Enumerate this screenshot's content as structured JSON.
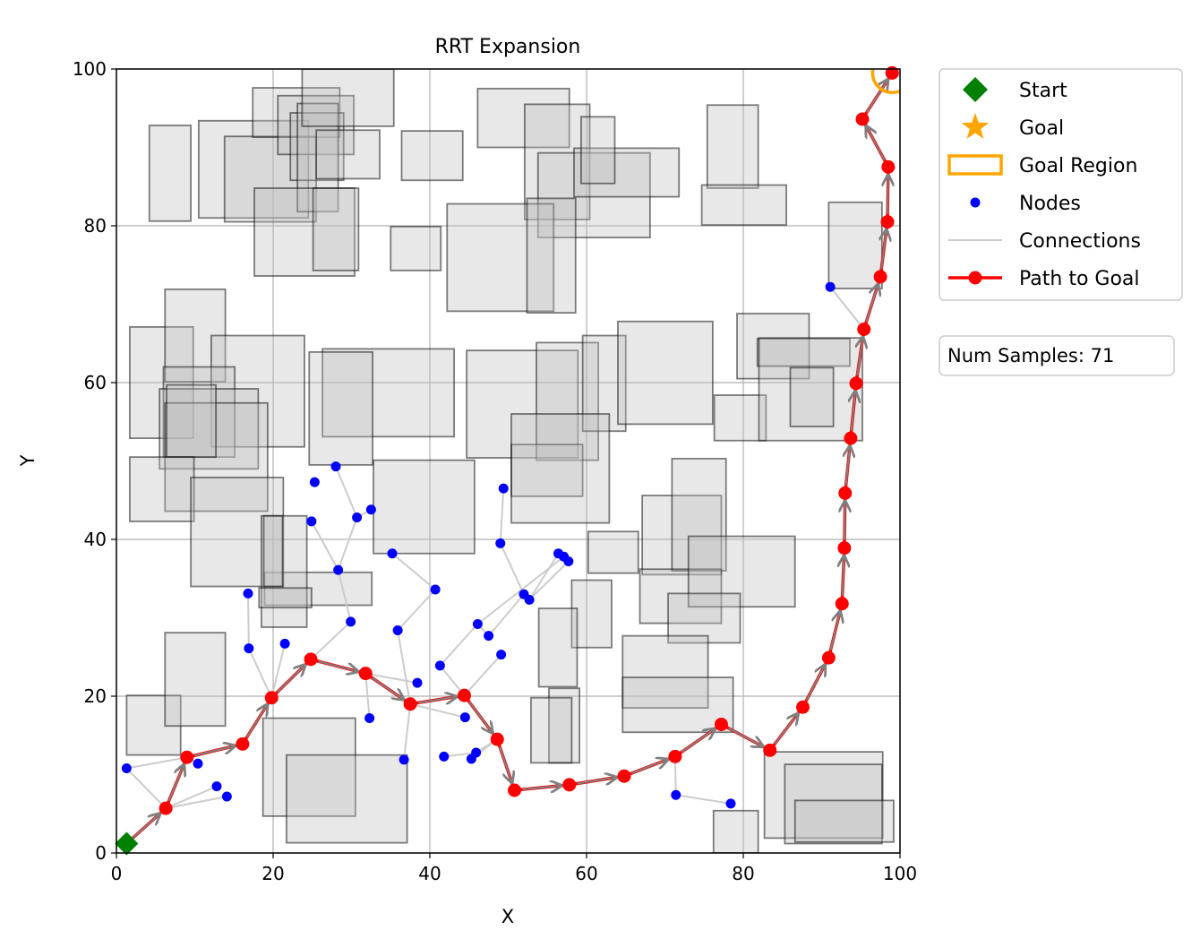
{
  "chart_data": {
    "type": "scatter",
    "title": "RRT Expansion",
    "xlabel": "X",
    "ylabel": "Y",
    "xlim": [
      0,
      100
    ],
    "ylim": [
      0,
      100
    ],
    "xticks": [
      0,
      20,
      40,
      60,
      80,
      100
    ],
    "yticks": [
      0,
      20,
      40,
      60,
      80,
      100
    ],
    "grid": true,
    "legend_placement": "outside-top-right",
    "legend": [
      {
        "label": "Start",
        "marker": "diamond",
        "color": "#008000"
      },
      {
        "label": "Goal",
        "marker": "star",
        "color": "#ffa500"
      },
      {
        "label": "Goal Region",
        "marker": "rect-outline",
        "color": "#ffa500"
      },
      {
        "label": "Nodes",
        "marker": "dot",
        "color": "#0000ff"
      },
      {
        "label": "Connections",
        "marker": "line",
        "color": "#cccccc"
      },
      {
        "label": "Path to Goal",
        "marker": "line-dot",
        "color": "#ff0000"
      }
    ],
    "annotation": "Num Samples: 71",
    "start": [
      1.3,
      1.2
    ],
    "goal": [
      99,
      99.5
    ],
    "goal_region_radius": 2.5,
    "obstacles": [
      [
        4.2,
        80.6,
        9.5,
        92.8
      ],
      [
        10.5,
        81.0,
        24.5,
        93.4
      ],
      [
        13.8,
        80.5,
        25.5,
        91.4
      ],
      [
        17.4,
        91.3,
        28.5,
        97.6
      ],
      [
        20.6,
        89.1,
        30.3,
        96.6
      ],
      [
        22.2,
        85.8,
        29.0,
        94.4
      ],
      [
        23.1,
        81.8,
        28.3,
        95.6
      ],
      [
        23.7,
        92.7,
        35.4,
        100
      ],
      [
        17.6,
        73.6,
        30.4,
        84.8
      ],
      [
        25.1,
        74.3,
        30.9,
        84.8
      ],
      [
        25.5,
        86.0,
        33.6,
        92.2
      ],
      [
        35.0,
        74.3,
        41.4,
        79.9
      ],
      [
        36.4,
        85.8,
        44.2,
        92.1
      ],
      [
        46.1,
        90.0,
        57.8,
        97.5
      ],
      [
        52.1,
        80.8,
        60.4,
        95.5
      ],
      [
        53.8,
        78.5,
        68.1,
        89.3
      ],
      [
        58.4,
        83.7,
        71.8,
        89.9
      ],
      [
        59.3,
        85.4,
        63.6,
        93.9
      ],
      [
        42.2,
        69.1,
        55.8,
        82.8
      ],
      [
        52.4,
        68.9,
        58.6,
        83.5
      ],
      [
        75.4,
        84.8,
        81.9,
        95.4
      ],
      [
        74.7,
        80.1,
        85.5,
        85.2
      ],
      [
        18.9,
        31.6,
        32.6,
        35.8
      ],
      [
        1.7,
        52.9,
        9.8,
        67.1
      ],
      [
        6.2,
        60.1,
        13.9,
        71.9
      ],
      [
        12.1,
        51.8,
        24.0,
        66.0
      ],
      [
        6.0,
        50.5,
        15.1,
        62.0
      ],
      [
        5.5,
        49.0,
        18.1,
        59.2
      ],
      [
        6.2,
        43.6,
        19.3,
        57.4
      ],
      [
        6.4,
        50.5,
        12.7,
        59.7
      ],
      [
        26.3,
        53.1,
        43.1,
        64.3
      ],
      [
        24.6,
        49.5,
        32.7,
        63.9
      ],
      [
        44.7,
        50.4,
        58.9,
        64.1
      ],
      [
        53.6,
        50.1,
        61.5,
        65.1
      ],
      [
        59.5,
        53.8,
        65.0,
        66.0
      ],
      [
        64.0,
        54.7,
        76.1,
        67.8
      ],
      [
        50.4,
        45.5,
        59.5,
        52.1
      ],
      [
        50.4,
        42.1,
        62.9,
        56.0
      ],
      [
        32.8,
        38.2,
        45.7,
        50.1
      ],
      [
        1.7,
        42.3,
        9.9,
        50.5
      ],
      [
        9.5,
        34.0,
        21.3,
        47.9
      ],
      [
        18.5,
        28.8,
        24.3,
        43.0
      ],
      [
        18.8,
        34.0,
        21.2,
        43.0
      ],
      [
        18.2,
        31.3,
        24.9,
        33.8
      ],
      [
        76.3,
        52.6,
        82.9,
        58.4
      ],
      [
        79.2,
        60.5,
        88.4,
        68.8
      ],
      [
        81.8,
        62.1,
        93.6,
        65.6
      ],
      [
        82.0,
        52.6,
        95.2,
        65.7
      ],
      [
        86.0,
        54.4,
        91.5,
        61.9
      ],
      [
        90.9,
        72.0,
        97.7,
        83.0
      ],
      [
        60.2,
        35.7,
        66.6,
        41.0
      ],
      [
        67.1,
        35.5,
        77.2,
        45.6
      ],
      [
        70.9,
        36.0,
        77.8,
        50.3
      ],
      [
        66.8,
        29.3,
        77.2,
        36.2
      ],
      [
        73.0,
        31.4,
        86.6,
        40.4
      ],
      [
        70.4,
        26.8,
        79.6,
        33.1
      ],
      [
        58.1,
        26.2,
        63.2,
        34.8
      ],
      [
        53.9,
        21.2,
        58.8,
        31.2
      ],
      [
        55.2,
        11.5,
        59.1,
        21.0
      ],
      [
        52.9,
        11.5,
        58.1,
        19.8
      ],
      [
        64.6,
        18.5,
        75.5,
        27.7
      ],
      [
        64.6,
        15.4,
        78.7,
        22.4
      ],
      [
        1.3,
        12.5,
        8.2,
        20.1
      ],
      [
        6.2,
        16.2,
        13.9,
        28.1
      ],
      [
        18.7,
        4.7,
        30.5,
        17.2
      ],
      [
        21.7,
        1.3,
        37.1,
        12.5
      ],
      [
        76.2,
        0,
        81.9,
        5.4
      ],
      [
        82.7,
        1.9,
        97.8,
        12.9
      ],
      [
        85.3,
        1.2,
        97.7,
        11.3
      ],
      [
        86.6,
        1.4,
        99.2,
        6.7
      ]
    ],
    "nodes": [
      [
        1.3,
        10.8
      ],
      [
        6.3,
        5.7
      ],
      [
        9.0,
        12.2
      ],
      [
        10.4,
        11.4
      ],
      [
        12.8,
        8.5
      ],
      [
        14.1,
        7.2
      ],
      [
        16.1,
        13.9
      ],
      [
        16.8,
        33.1
      ],
      [
        16.9,
        26.1
      ],
      [
        19.8,
        19.8
      ],
      [
        21.5,
        26.7
      ],
      [
        24.8,
        24.7
      ],
      [
        24.9,
        42.3
      ],
      [
        25.3,
        47.3
      ],
      [
        28.0,
        49.3
      ],
      [
        28.3,
        36.1
      ],
      [
        29.9,
        29.5
      ],
      [
        30.7,
        42.8
      ],
      [
        31.8,
        22.9
      ],
      [
        32.3,
        17.2
      ],
      [
        32.5,
        43.8
      ],
      [
        35.2,
        38.2
      ],
      [
        36.7,
        11.9
      ],
      [
        35.9,
        28.4
      ],
      [
        37.5,
        19.0
      ],
      [
        38.4,
        21.7
      ],
      [
        40.7,
        33.6
      ],
      [
        41.3,
        23.9
      ],
      [
        41.8,
        12.3
      ],
      [
        44.4,
        20.1
      ],
      [
        44.5,
        17.3
      ],
      [
        45.3,
        12.0
      ],
      [
        45.9,
        12.8
      ],
      [
        46.1,
        29.2
      ],
      [
        47.5,
        27.7
      ],
      [
        48.6,
        14.5
      ],
      [
        49.0,
        39.5
      ],
      [
        49.1,
        25.3
      ],
      [
        49.4,
        46.5
      ],
      [
        50.8,
        8.0
      ],
      [
        52.0,
        33.0
      ],
      [
        52.7,
        32.3
      ],
      [
        56.4,
        38.2
      ],
      [
        57.1,
        37.8
      ],
      [
        57.7,
        37.2
      ],
      [
        57.8,
        8.7
      ],
      [
        64.8,
        9.8
      ],
      [
        71.3,
        12.3
      ],
      [
        71.4,
        7.4
      ],
      [
        77.2,
        16.4
      ],
      [
        78.4,
        6.3
      ],
      [
        83.4,
        13.1
      ],
      [
        87.6,
        18.6
      ],
      [
        90.9,
        24.9
      ],
      [
        91.1,
        72.2
      ],
      [
        92.6,
        31.8
      ],
      [
        92.9,
        38.9
      ],
      [
        93.0,
        45.9
      ],
      [
        93.7,
        52.9
      ],
      [
        94.4,
        59.9
      ],
      [
        95.4,
        66.8
      ],
      [
        97.5,
        73.5
      ],
      [
        98.4,
        80.5
      ],
      [
        98.5,
        87.5
      ],
      [
        95.2,
        93.6
      ],
      [
        99.0,
        99.5
      ]
    ],
    "connections": [
      [
        [
          1.3,
          10.8
        ],
        [
          9.0,
          12.2
        ]
      ],
      [
        [
          1.3,
          10.8
        ],
        [
          6.3,
          5.7
        ]
      ],
      [
        [
          9.0,
          12.2
        ],
        [
          10.4,
          11.4
        ]
      ],
      [
        [
          6.3,
          5.7
        ],
        [
          12.8,
          8.5
        ]
      ],
      [
        [
          6.3,
          5.7
        ],
        [
          14.1,
          7.2
        ]
      ],
      [
        [
          16.1,
          13.9
        ],
        [
          19.8,
          19.8
        ]
      ],
      [
        [
          16.8,
          33.1
        ],
        [
          16.9,
          26.1
        ]
      ],
      [
        [
          16.9,
          26.1
        ],
        [
          19.8,
          19.8
        ]
      ],
      [
        [
          21.5,
          26.7
        ],
        [
          19.8,
          19.8
        ]
      ],
      [
        [
          24.8,
          24.7
        ],
        [
          29.9,
          29.5
        ]
      ],
      [
        [
          29.9,
          29.5
        ],
        [
          28.3,
          36.1
        ]
      ],
      [
        [
          28.3,
          36.1
        ],
        [
          24.9,
          42.3
        ]
      ],
      [
        [
          28.3,
          36.1
        ],
        [
          30.7,
          42.8
        ]
      ],
      [
        [
          30.7,
          42.8
        ],
        [
          28.0,
          49.3
        ]
      ],
      [
        [
          30.7,
          42.8
        ],
        [
          32.5,
          43.8
        ]
      ],
      [
        [
          31.8,
          22.9
        ],
        [
          38.4,
          21.7
        ]
      ],
      [
        [
          37.5,
          19.0
        ],
        [
          35.9,
          28.4
        ]
      ],
      [
        [
          35.9,
          28.4
        ],
        [
          40.7,
          33.6
        ]
      ],
      [
        [
          40.7,
          33.6
        ],
        [
          35.2,
          38.2
        ]
      ],
      [
        [
          37.5,
          19.0
        ],
        [
          36.7,
          11.9
        ]
      ],
      [
        [
          37.5,
          19.0
        ],
        [
          44.5,
          17.3
        ]
      ],
      [
        [
          32.3,
          17.2
        ],
        [
          31.8,
          22.9
        ]
      ],
      [
        [
          44.4,
          20.1
        ],
        [
          41.3,
          23.9
        ]
      ],
      [
        [
          41.3,
          23.9
        ],
        [
          46.1,
          29.2
        ]
      ],
      [
        [
          44.4,
          20.1
        ],
        [
          49.1,
          25.3
        ]
      ],
      [
        [
          48.6,
          14.5
        ],
        [
          45.3,
          12.0
        ]
      ],
      [
        [
          48.6,
          14.5
        ],
        [
          45.9,
          12.8
        ]
      ],
      [
        [
          45.9,
          12.8
        ],
        [
          41.8,
          12.3
        ]
      ],
      [
        [
          46.1,
          29.2
        ],
        [
          47.5,
          27.7
        ]
      ],
      [
        [
          47.5,
          27.7
        ],
        [
          52.0,
          33.0
        ]
      ],
      [
        [
          52.0,
          33.0
        ],
        [
          49.0,
          39.5
        ]
      ],
      [
        [
          49.0,
          39.5
        ],
        [
          49.4,
          46.5
        ]
      ],
      [
        [
          52.7,
          32.3
        ],
        [
          56.4,
          38.2
        ]
      ],
      [
        [
          52.7,
          32.3
        ],
        [
          57.7,
          37.2
        ]
      ],
      [
        [
          46.1,
          29.2
        ],
        [
          57.1,
          37.8
        ]
      ],
      [
        [
          71.3,
          12.3
        ],
        [
          71.4,
          7.4
        ]
      ],
      [
        [
          71.4,
          7.4
        ],
        [
          78.4,
          6.3
        ]
      ],
      [
        [
          91.1,
          72.2
        ],
        [
          95.4,
          66.8
        ]
      ],
      [
        [
          24.8,
          24.7
        ],
        [
          31.8,
          22.9
        ]
      ]
    ],
    "path": [
      [
        1.3,
        1.2
      ],
      [
        6.3,
        5.7
      ],
      [
        9.0,
        12.2
      ],
      [
        16.1,
        13.9
      ],
      [
        19.8,
        19.8
      ],
      [
        24.8,
        24.7
      ],
      [
        31.8,
        22.9
      ],
      [
        37.5,
        19.0
      ],
      [
        44.4,
        20.1
      ],
      [
        48.6,
        14.5
      ],
      [
        50.8,
        8.0
      ],
      [
        57.8,
        8.7
      ],
      [
        64.8,
        9.8
      ],
      [
        71.3,
        12.3
      ],
      [
        77.2,
        16.4
      ],
      [
        83.4,
        13.1
      ],
      [
        87.6,
        18.6
      ],
      [
        90.9,
        24.9
      ],
      [
        92.6,
        31.8
      ],
      [
        92.9,
        38.9
      ],
      [
        93.0,
        45.9
      ],
      [
        93.7,
        52.9
      ],
      [
        94.4,
        59.9
      ],
      [
        95.4,
        66.8
      ],
      [
        97.5,
        73.5
      ],
      [
        98.4,
        80.5
      ],
      [
        98.5,
        87.5
      ],
      [
        95.2,
        93.6
      ],
      [
        99.0,
        99.5
      ]
    ]
  }
}
